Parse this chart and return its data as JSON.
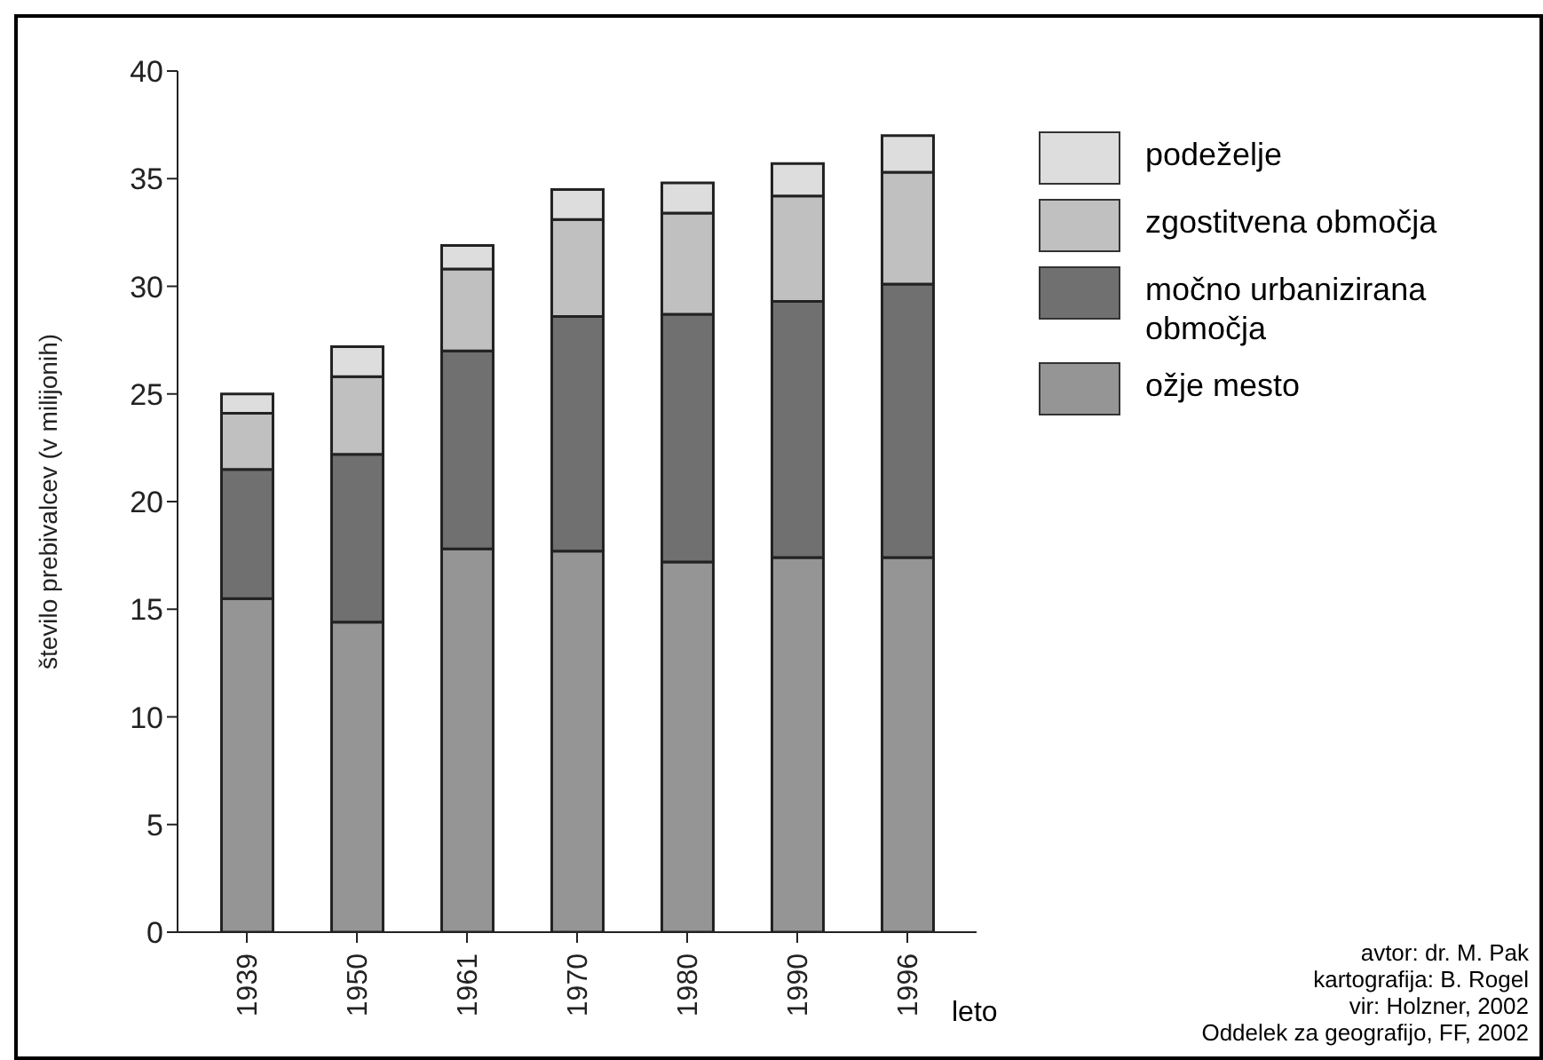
{
  "chart_data": {
    "type": "bar",
    "stacked": true,
    "xlabel": "leto",
    "ylabel": "število prebivalcev (v milijonih)",
    "categories": [
      "1939",
      "1950",
      "1961",
      "1970",
      "1980",
      "1990",
      "1996"
    ],
    "series": [
      {
        "name": "ožje mesto",
        "color": "#959595",
        "values": [
          15.5,
          14.4,
          17.8,
          17.7,
          17.2,
          17.4,
          17.4
        ]
      },
      {
        "name": "močno urbanizirana območja",
        "color": "#707070",
        "values": [
          6.0,
          7.8,
          9.2,
          10.9,
          11.5,
          11.9,
          12.7
        ]
      },
      {
        "name": "zgostitvena območja",
        "color": "#c0c0c0",
        "values": [
          2.6,
          3.6,
          3.8,
          4.5,
          4.7,
          4.9,
          5.2
        ]
      },
      {
        "name": "podeželje",
        "color": "#dddddd",
        "values": [
          0.9,
          1.4,
          1.1,
          1.4,
          1.4,
          1.5,
          1.7
        ]
      }
    ],
    "ylim": [
      0,
      40
    ],
    "yticks": [
      0,
      5,
      10,
      15,
      20,
      25,
      30,
      35,
      40
    ],
    "grid": false,
    "legend": "top right",
    "annotations": [
      "avtor: dr. M. Pak",
      "kartografija: B. Rogel",
      "vir: Holzner, 2002",
      "Oddelek za geografijo, FF, 2002"
    ]
  }
}
